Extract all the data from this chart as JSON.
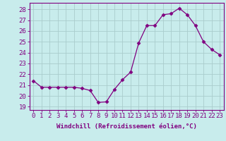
{
  "x": [
    0,
    1,
    2,
    3,
    4,
    5,
    6,
    7,
    8,
    9,
    10,
    11,
    12,
    13,
    14,
    15,
    16,
    17,
    18,
    19,
    20,
    21,
    22,
    23
  ],
  "y": [
    21.4,
    20.8,
    20.8,
    20.8,
    20.8,
    20.8,
    20.7,
    20.5,
    19.4,
    19.45,
    20.6,
    21.5,
    22.2,
    24.9,
    26.5,
    26.5,
    27.5,
    27.6,
    28.1,
    27.5,
    26.5,
    25.0,
    24.3,
    23.8
  ],
  "line_color": "#800080",
  "marker": "D",
  "marker_size": 2.5,
  "bg_color": "#c8ecec",
  "grid_color": "#aacccc",
  "title": "",
  "xlabel": "Windchill (Refroidissement éolien,°C)",
  "xlabel_fontsize": 6.5,
  "ylabel_ticks": [
    19,
    20,
    21,
    22,
    23,
    24,
    25,
    26,
    27,
    28
  ],
  "ylim": [
    18.7,
    28.6
  ],
  "xlim": [
    -0.5,
    23.5
  ],
  "tick_fontsize": 6.5,
  "spine_color": "#800080"
}
